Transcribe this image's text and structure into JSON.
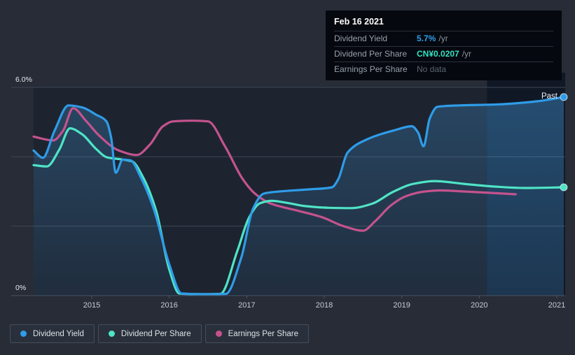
{
  "tooltip": {
    "date": "Feb 16 2021",
    "rows": [
      {
        "label": "Dividend Yield",
        "value": "5.7%",
        "suffix": "/yr",
        "value_color": "#2e9fe8",
        "muted": false
      },
      {
        "label": "Dividend Per Share",
        "value": "CN¥0.0207",
        "suffix": "/yr",
        "value_color": "#35e2c2",
        "muted": false
      },
      {
        "label": "Earnings Per Share",
        "value": "No data",
        "suffix": "",
        "value_color": "#5d656e",
        "muted": true
      }
    ]
  },
  "legend": {
    "items": [
      {
        "label": "Dividend Yield",
        "color": "#2f9ce8"
      },
      {
        "label": "Dividend Per Share",
        "color": "#4fe4c6"
      },
      {
        "label": "Earnings Per Share",
        "color": "#c4538d"
      }
    ]
  },
  "colors": {
    "page_bg": "#272c37",
    "plot_bg": "#1d2430",
    "band_bg": "#111825",
    "grid": "#3e4654",
    "axis": "#4b5462",
    "area_fill": "#4296d7",
    "x_label": "#c6ccd5",
    "y_label": "#e8ebef",
    "past_label_color": "#edf1f5"
  },
  "chart_data": {
    "type": "line",
    "title": "Dividend history",
    "x_ticks": [
      "2015",
      "2016",
      "2017",
      "2018",
      "2019",
      "2020",
      "2021"
    ],
    "x_start_year": 2015,
    "y_axis": {
      "top_label": "6.0%",
      "bottom_label": "0%",
      "min": 0,
      "max": 6,
      "gridlines": [
        0,
        2,
        4,
        6
      ],
      "unit": "%"
    },
    "past_label": "Past",
    "highlight_from_year": 2020.1,
    "legend_position": "bottom-left",
    "series": [
      {
        "id": "dividend-yield",
        "name": "Dividend Yield",
        "color": "#2f9ce8",
        "area_fill": true,
        "end_marker": true,
        "points": [
          [
            2014.25,
            4.18
          ],
          [
            2014.37,
            3.97
          ],
          [
            2014.52,
            4.75
          ],
          [
            2014.7,
            5.48
          ],
          [
            2014.88,
            5.42
          ],
          [
            2015.05,
            5.22
          ],
          [
            2015.19,
            5.02
          ],
          [
            2015.25,
            4.55
          ],
          [
            2015.31,
            3.54
          ],
          [
            2015.4,
            3.92
          ],
          [
            2015.5,
            3.9
          ],
          [
            2015.63,
            3.42
          ],
          [
            2015.8,
            2.5
          ],
          [
            2016.0,
            0.9
          ],
          [
            2016.16,
            0.06
          ],
          [
            2016.45,
            0.04
          ],
          [
            2016.73,
            0.05
          ],
          [
            2016.93,
            1.1
          ],
          [
            2017.08,
            2.5
          ],
          [
            2017.22,
            2.94
          ],
          [
            2017.42,
            3.0
          ],
          [
            2017.8,
            3.06
          ],
          [
            2018.1,
            3.12
          ],
          [
            2018.18,
            3.35
          ],
          [
            2018.3,
            4.12
          ],
          [
            2018.55,
            4.5
          ],
          [
            2018.9,
            4.76
          ],
          [
            2019.13,
            4.88
          ],
          [
            2019.21,
            4.7
          ],
          [
            2019.28,
            4.3
          ],
          [
            2019.36,
            5.1
          ],
          [
            2019.46,
            5.44
          ],
          [
            2019.75,
            5.48
          ],
          [
            2020.25,
            5.51
          ],
          [
            2020.75,
            5.6
          ],
          [
            2021.09,
            5.72
          ]
        ]
      },
      {
        "id": "dividend-per-share",
        "name": "Dividend Per Share",
        "color": "#4fe4c6",
        "area_fill": false,
        "end_marker": true,
        "points": [
          [
            2014.25,
            3.76
          ],
          [
            2014.42,
            3.72
          ],
          [
            2014.58,
            4.2
          ],
          [
            2014.72,
            4.82
          ],
          [
            2014.88,
            4.64
          ],
          [
            2015.05,
            4.24
          ],
          [
            2015.2,
            3.98
          ],
          [
            2015.4,
            3.92
          ],
          [
            2015.52,
            3.87
          ],
          [
            2015.66,
            3.42
          ],
          [
            2015.83,
            2.45
          ],
          [
            2016.0,
            0.75
          ],
          [
            2016.13,
            0.06
          ],
          [
            2016.4,
            0.04
          ],
          [
            2016.66,
            0.05
          ],
          [
            2016.88,
            1.3
          ],
          [
            2017.03,
            2.25
          ],
          [
            2017.17,
            2.66
          ],
          [
            2017.32,
            2.73
          ],
          [
            2017.5,
            2.68
          ],
          [
            2017.75,
            2.58
          ],
          [
            2018.05,
            2.53
          ],
          [
            2018.35,
            2.52
          ],
          [
            2018.62,
            2.65
          ],
          [
            2018.88,
            2.98
          ],
          [
            2019.15,
            3.22
          ],
          [
            2019.42,
            3.3
          ],
          [
            2019.8,
            3.22
          ],
          [
            2020.2,
            3.14
          ],
          [
            2020.6,
            3.1
          ],
          [
            2021.09,
            3.12
          ]
        ]
      },
      {
        "id": "earnings-per-share",
        "name": "Earnings Per Share",
        "color": "#c4538d",
        "area_fill": false,
        "end_marker": false,
        "points": [
          [
            2014.25,
            4.58
          ],
          [
            2014.5,
            4.47
          ],
          [
            2014.63,
            4.75
          ],
          [
            2014.76,
            5.4
          ],
          [
            2014.92,
            5.05
          ],
          [
            2015.1,
            4.6
          ],
          [
            2015.35,
            4.18
          ],
          [
            2015.58,
            4.05
          ],
          [
            2015.75,
            4.35
          ],
          [
            2015.92,
            4.88
          ],
          [
            2016.05,
            5.02
          ],
          [
            2016.3,
            5.04
          ],
          [
            2016.5,
            5.02
          ],
          [
            2016.72,
            4.3
          ],
          [
            2016.95,
            3.35
          ],
          [
            2017.1,
            2.95
          ],
          [
            2017.3,
            2.66
          ],
          [
            2017.67,
            2.44
          ],
          [
            2017.97,
            2.26
          ],
          [
            2018.25,
            2.0
          ],
          [
            2018.5,
            1.87
          ],
          [
            2018.66,
            2.15
          ],
          [
            2018.86,
            2.6
          ],
          [
            2019.06,
            2.87
          ],
          [
            2019.3,
            3.0
          ],
          [
            2019.5,
            3.03
          ],
          [
            2019.8,
            3.0
          ],
          [
            2020.15,
            2.96
          ],
          [
            2020.47,
            2.92
          ]
        ]
      }
    ]
  }
}
